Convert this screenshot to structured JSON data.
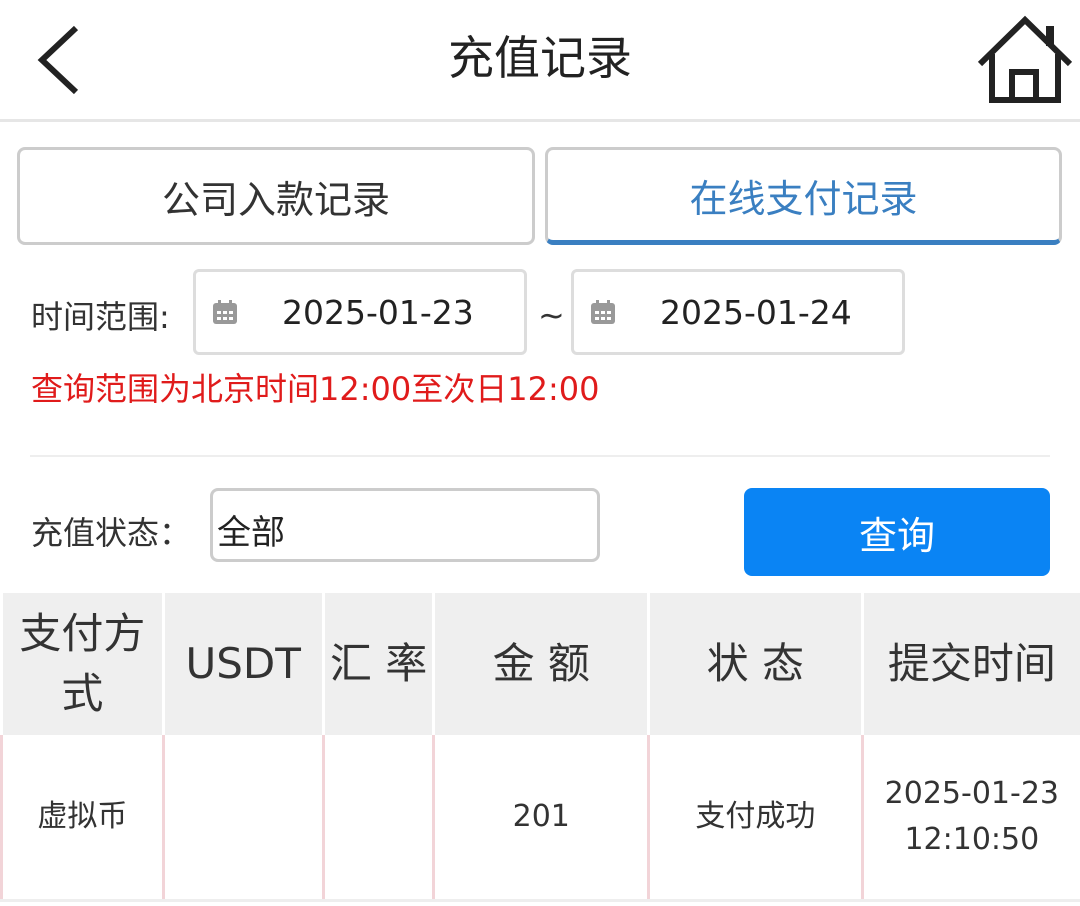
{
  "header": {
    "title": "充值记录",
    "back_icon": "chevron-left-icon",
    "home_icon": "home-icon"
  },
  "tabs": [
    {
      "label": "公司入款记录",
      "active": false
    },
    {
      "label": "在线支付记录",
      "active": true
    }
  ],
  "filter": {
    "time_label": "时间范围:",
    "start_date": "2025-01-23",
    "separator": "~",
    "end_date": "2025-01-24",
    "notice": "查询范围为北京时间12:00至次日12:00",
    "status_label": "充值状态：",
    "status_value": "全部",
    "query_button": "查询"
  },
  "colors": {
    "accent": "#3a7fc1",
    "button": "#0a84f4",
    "warning": "#e01b1b"
  },
  "table": {
    "headers": [
      "支付方式",
      "USDT",
      "汇 率",
      "金 额",
      "状 态",
      "提交时间"
    ],
    "rows": [
      {
        "method": "虚拟币",
        "usdt": "",
        "rate": "",
        "amount": "201",
        "status": "支付成功",
        "date": "2025-01-23",
        "time": "12:10:50"
      }
    ]
  }
}
